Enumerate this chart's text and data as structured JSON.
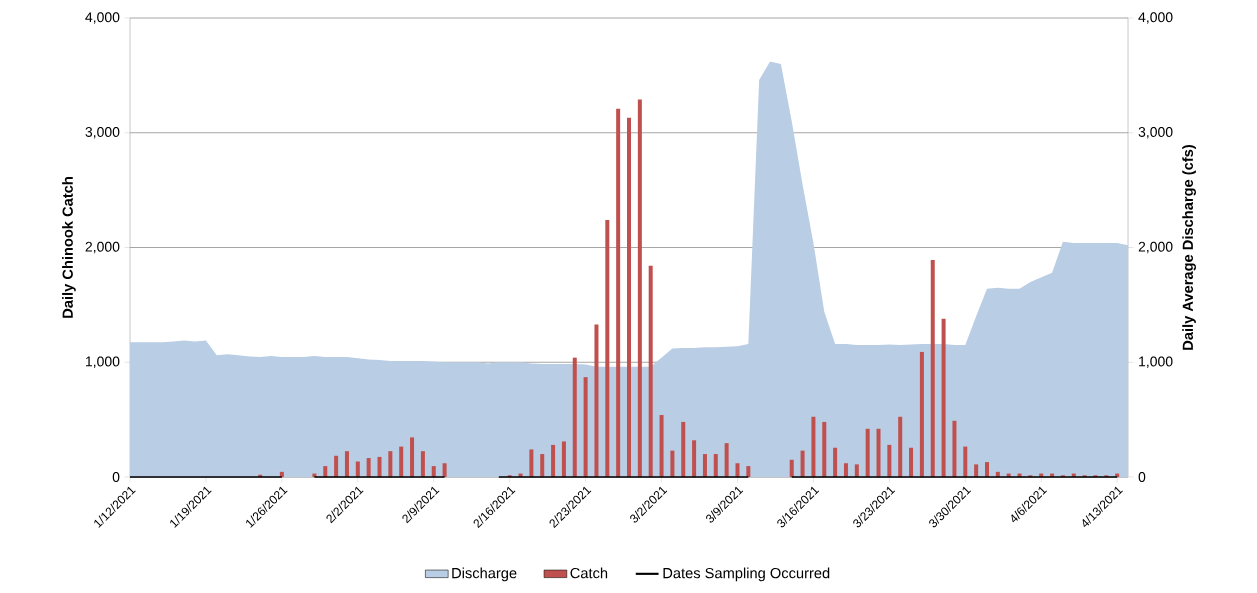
{
  "chart_data": {
    "type": "bar",
    "xlabel": null,
    "ylabel": "Daily Chinook Catch",
    "y2label": "Daily Average Discharge (cfs)",
    "x": [
      "2021-01-12",
      "2021-01-13",
      "2021-01-14",
      "2021-01-15",
      "2021-01-16",
      "2021-01-17",
      "2021-01-18",
      "2021-01-19",
      "2021-01-20",
      "2021-01-21",
      "2021-01-22",
      "2021-01-23",
      "2021-01-24",
      "2021-01-25",
      "2021-01-26",
      "2021-01-27",
      "2021-01-28",
      "2021-01-29",
      "2021-01-30",
      "2021-01-31",
      "2021-02-01",
      "2021-02-02",
      "2021-02-03",
      "2021-02-04",
      "2021-02-05",
      "2021-02-06",
      "2021-02-07",
      "2021-02-08",
      "2021-02-09",
      "2021-02-10",
      "2021-02-11",
      "2021-02-12",
      "2021-02-13",
      "2021-02-14",
      "2021-02-15",
      "2021-02-16",
      "2021-02-17",
      "2021-02-18",
      "2021-02-19",
      "2021-02-20",
      "2021-02-21",
      "2021-02-22",
      "2021-02-23",
      "2021-02-24",
      "2021-02-25",
      "2021-02-26",
      "2021-02-27",
      "2021-02-28",
      "2021-03-01",
      "2021-03-02",
      "2021-03-03",
      "2021-03-04",
      "2021-03-05",
      "2021-03-06",
      "2021-03-07",
      "2021-03-08",
      "2021-03-09",
      "2021-03-10",
      "2021-03-11",
      "2021-03-12",
      "2021-03-13",
      "2021-03-14",
      "2021-03-15",
      "2021-03-16",
      "2021-03-17",
      "2021-03-18",
      "2021-03-19",
      "2021-03-20",
      "2021-03-21",
      "2021-03-22",
      "2021-03-23",
      "2021-03-24",
      "2021-03-25",
      "2021-03-26",
      "2021-03-27",
      "2021-03-28",
      "2021-03-29",
      "2021-03-30",
      "2021-03-31",
      "2021-04-01",
      "2021-04-02",
      "2021-04-03",
      "2021-04-04",
      "2021-04-05",
      "2021-04-06",
      "2021-04-07",
      "2021-04-08",
      "2021-04-09",
      "2021-04-10",
      "2021-04-11",
      "2021-04-12",
      "2021-04-13",
      "2021-04-14"
    ],
    "series": [
      {
        "name": "Discharge",
        "type": "area",
        "axis": "y2",
        "color": "#b9cde4",
        "values": [
          1175,
          1175,
          1175,
          1175,
          1180,
          1190,
          1180,
          1190,
          1060,
          1070,
          1060,
          1050,
          1045,
          1055,
          1045,
          1045,
          1045,
          1055,
          1045,
          1045,
          1045,
          1035,
          1025,
          1020,
          1010,
          1010,
          1010,
          1010,
          1005,
          1000,
          1000,
          1000,
          1000,
          990,
          1000,
          1000,
          1000,
          990,
          985,
          985,
          985,
          985,
          980,
          960,
          960,
          960,
          960,
          960,
          960,
          1040,
          1120,
          1125,
          1125,
          1130,
          1130,
          1135,
          1140,
          1160,
          3460,
          3620,
          3600,
          3100,
          2550,
          2040,
          1440,
          1160,
          1160,
          1150,
          1150,
          1150,
          1155,
          1150,
          1155,
          1160,
          1160,
          1160,
          1150,
          1150,
          1400,
          1640,
          1650,
          1640,
          1640,
          1700,
          1740,
          1780,
          2050,
          2040,
          2040,
          2040,
          2040,
          2040,
          2020
        ]
      },
      {
        "name": "Catch",
        "color": "#c0504d",
        "values": [
          0,
          0,
          0,
          0,
          0,
          0,
          0,
          0,
          0,
          0,
          0,
          0,
          20,
          0,
          45,
          null,
          null,
          30,
          95,
          185,
          225,
          135,
          165,
          175,
          225,
          265,
          345,
          225,
          95,
          120,
          null,
          null,
          null,
          null,
          0,
          15,
          30,
          240,
          200,
          280,
          310,
          1040,
          870,
          1330,
          2240,
          3210,
          3130,
          3290,
          1840,
          540,
          230,
          480,
          320,
          200,
          200,
          295,
          120,
          95,
          null,
          null,
          null,
          150,
          230,
          525,
          480,
          255,
          120,
          110,
          420,
          420,
          280,
          525,
          255,
          1090,
          1890,
          1380,
          490,
          265,
          110,
          130,
          45,
          30,
          30,
          15,
          30,
          30,
          15,
          30,
          15,
          15,
          15,
          30,
          null
        ]
      },
      {
        "name": "Dates Sampling Occurred",
        "type": "line",
        "color": "#000000",
        "values": [
          0,
          0,
          0,
          0,
          0,
          0,
          0,
          0,
          0,
          0,
          0,
          0,
          0,
          0,
          0,
          null,
          null,
          0,
          0,
          0,
          0,
          0,
          0,
          0,
          0,
          0,
          0,
          0,
          0,
          0,
          null,
          null,
          null,
          null,
          0,
          0,
          0,
          0,
          0,
          0,
          0,
          0,
          0,
          0,
          0,
          0,
          0,
          0,
          0,
          0,
          0,
          0,
          0,
          0,
          0,
          0,
          0,
          0,
          null,
          null,
          null,
          0,
          0,
          0,
          0,
          0,
          0,
          0,
          0,
          0,
          0,
          0,
          0,
          0,
          0,
          0,
          0,
          0,
          0,
          0,
          0,
          0,
          0,
          0,
          0,
          0,
          0,
          0,
          0,
          0,
          0,
          0,
          null
        ]
      }
    ],
    "xlim": [
      "2021-01-12",
      "2021-04-14"
    ],
    "xticks": [
      {
        "value": "2021-01-12",
        "label": "1/12/2021"
      },
      {
        "value": "2021-01-19",
        "label": "1/19/2021"
      },
      {
        "value": "2021-01-26",
        "label": "1/26/2021"
      },
      {
        "value": "2021-02-02",
        "label": "2/2/2021"
      },
      {
        "value": "2021-02-09",
        "label": "2/9/2021"
      },
      {
        "value": "2021-02-16",
        "label": "2/16/2021"
      },
      {
        "value": "2021-02-23",
        "label": "2/23/2021"
      },
      {
        "value": "2021-03-02",
        "label": "3/2/2021"
      },
      {
        "value": "2021-03-09",
        "label": "3/9/2021"
      },
      {
        "value": "2021-03-16",
        "label": "3/16/2021"
      },
      {
        "value": "2021-03-23",
        "label": "3/23/2021"
      },
      {
        "value": "2021-03-30",
        "label": "3/30/2021"
      },
      {
        "value": "2021-04-06",
        "label": "4/6/2021"
      },
      {
        "value": "2021-04-13",
        "label": "4/13/2021"
      }
    ],
    "ylim": [
      0,
      4000
    ],
    "yticks": [
      0,
      {
        "value": 1000,
        "label": "1,000"
      },
      {
        "value": 2000,
        "label": "2,000"
      },
      {
        "value": 3000,
        "label": "3,000"
      },
      {
        "value": 4000,
        "label": "4,000"
      }
    ],
    "y2lim": [
      0,
      4000
    ],
    "y2ticks": [
      0,
      {
        "value": 1000,
        "label": "1,000"
      },
      {
        "value": 2000,
        "label": "2,000"
      },
      {
        "value": 3000,
        "label": "3,000"
      },
      {
        "value": 4000,
        "label": "4,000"
      }
    ],
    "grid": "y",
    "legend": "bottom"
  }
}
